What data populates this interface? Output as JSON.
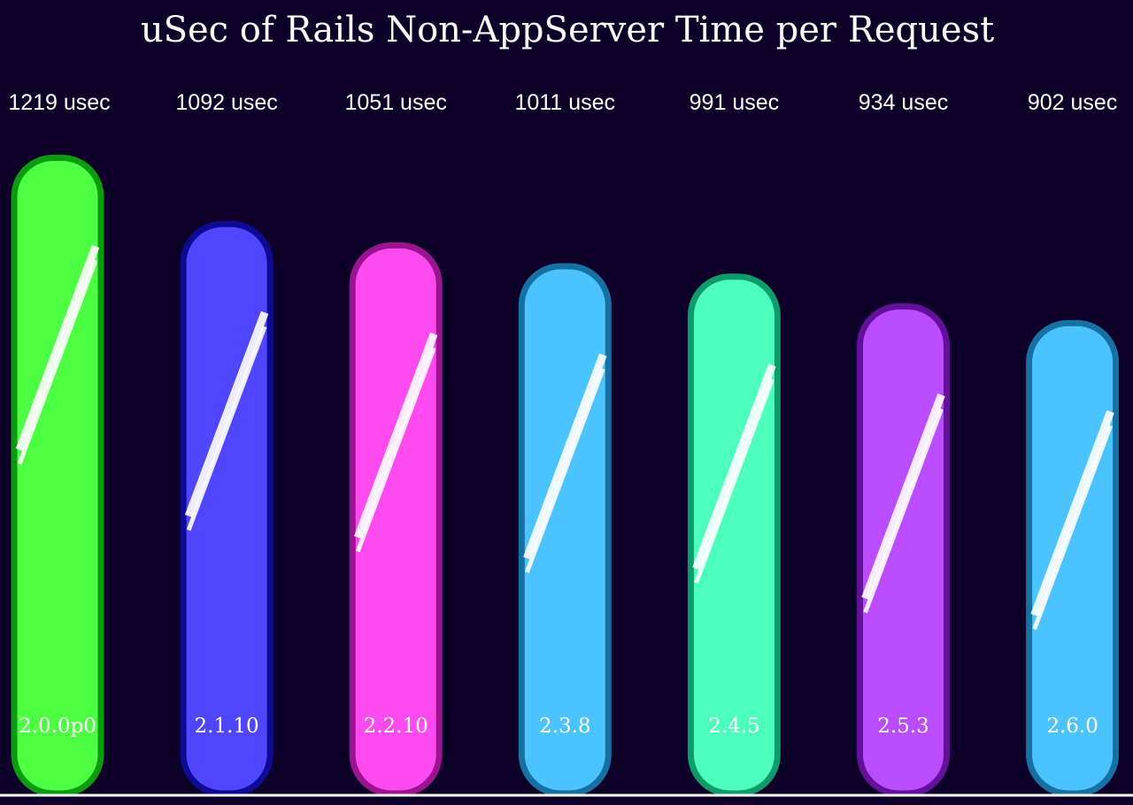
{
  "chart_data": {
    "type": "bar",
    "title": "uSec of Rails Non-AppServer Time per Request",
    "xlabel": "",
    "ylabel": "",
    "unit": "usec",
    "categories": [
      "2.0.0p0",
      "2.1.10",
      "2.2.10",
      "2.3.8",
      "2.4.5",
      "2.5.3",
      "2.6.0"
    ],
    "values": [
      1219,
      1092,
      1051,
      1011,
      991,
      934,
      902
    ],
    "value_labels": [
      "1219 usec",
      "1092 usec",
      "1051 usec",
      "1011 usec",
      "991 usec",
      "934 usec",
      "902 usec"
    ],
    "grid": false,
    "legend": "none",
    "bar_colors": [
      {
        "fill": "#4cff42",
        "stroke": "#0b9a10"
      },
      {
        "fill": "#5046ff",
        "stroke": "#0f0a94"
      },
      {
        "fill": "#ff4af0",
        "stroke": "#9a1490"
      },
      {
        "fill": "#4bc3ff",
        "stroke": "#1770a2"
      },
      {
        "fill": "#4dffbc",
        "stroke": "#0e9a6a"
      },
      {
        "fill": "#bb4cff",
        "stroke": "#63109a"
      },
      {
        "fill": "#4bc3ff",
        "stroke": "#1770a2"
      }
    ],
    "background": "#0c0029"
  }
}
